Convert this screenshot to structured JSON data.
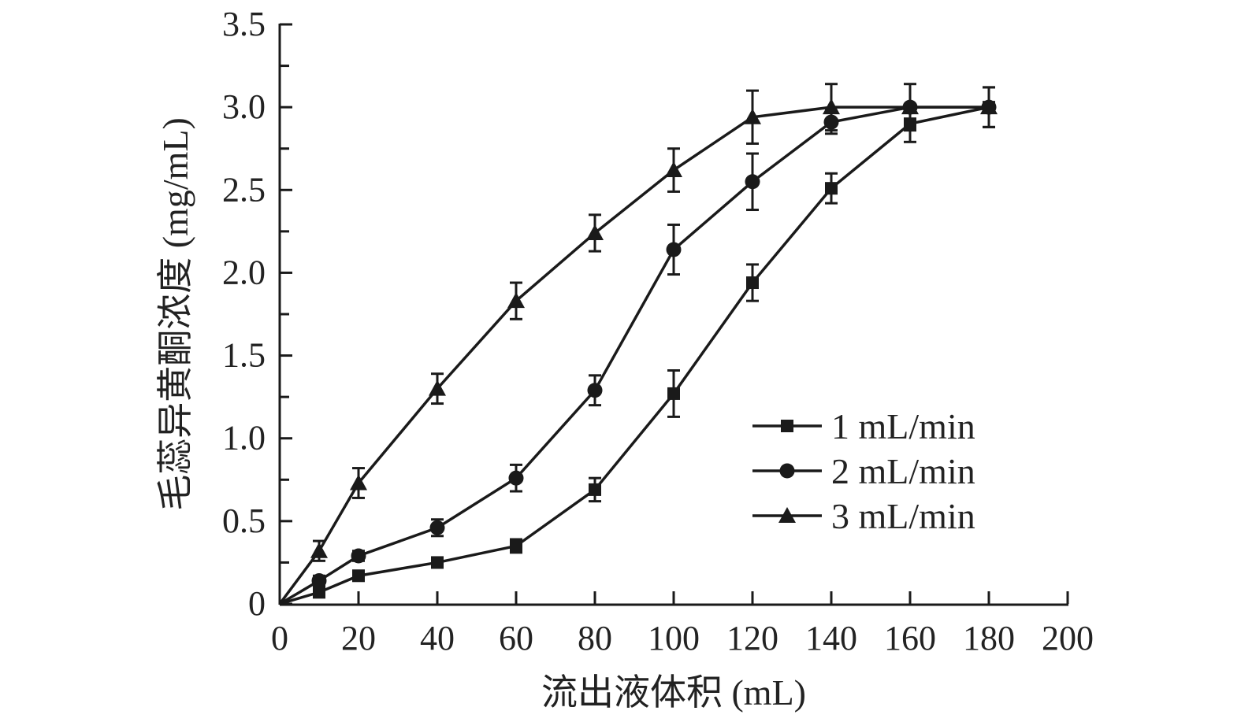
{
  "chart_data": {
    "type": "line",
    "title": "",
    "xlabel": "流出液体积 (mL)",
    "ylabel": "毛蕊异黄酮浓度 (mg/mL)",
    "xlim": [
      0,
      200
    ],
    "ylim": [
      0,
      3.5
    ],
    "xticks": [
      "0",
      "20",
      "40",
      "60",
      "80",
      "100",
      "120",
      "140",
      "160",
      "180",
      "200"
    ],
    "yticks": [
      "0",
      "0.5",
      "1.0",
      "1.5",
      "2.0",
      "2.5",
      "3.0",
      "3.5"
    ],
    "grid": false,
    "legend_position": "center-right",
    "x": [
      0,
      10,
      20,
      40,
      60,
      80,
      100,
      120,
      140,
      160,
      180
    ],
    "series": [
      {
        "name": "1 mL/min",
        "marker": "square",
        "values": [
          0,
          0.07,
          0.17,
          0.25,
          0.35,
          0.69,
          1.27,
          1.94,
          2.51,
          2.9,
          3.0
        ],
        "errors": [
          0,
          0.03,
          0.03,
          0.03,
          0.04,
          0.07,
          0.14,
          0.11,
          0.09,
          0.11,
          0.12
        ]
      },
      {
        "name": "2 mL/min",
        "marker": "circle",
        "values": [
          0,
          0.14,
          0.29,
          0.46,
          0.76,
          1.29,
          2.14,
          2.55,
          2.91,
          3.0,
          3.0
        ],
        "errors": [
          0,
          0.03,
          0.03,
          0.05,
          0.08,
          0.09,
          0.15,
          0.17,
          0.07,
          0.14,
          0.12
        ]
      },
      {
        "name": "3 mL/min",
        "marker": "triangle",
        "values": [
          0,
          0.32,
          0.73,
          1.3,
          1.83,
          2.24,
          2.62,
          2.94,
          3.0,
          3.0,
          3.0
        ],
        "errors": [
          0,
          0.06,
          0.09,
          0.09,
          0.11,
          0.11,
          0.13,
          0.16,
          0.14,
          0.0,
          0.0
        ]
      }
    ],
    "color": "#1a1a1a"
  }
}
